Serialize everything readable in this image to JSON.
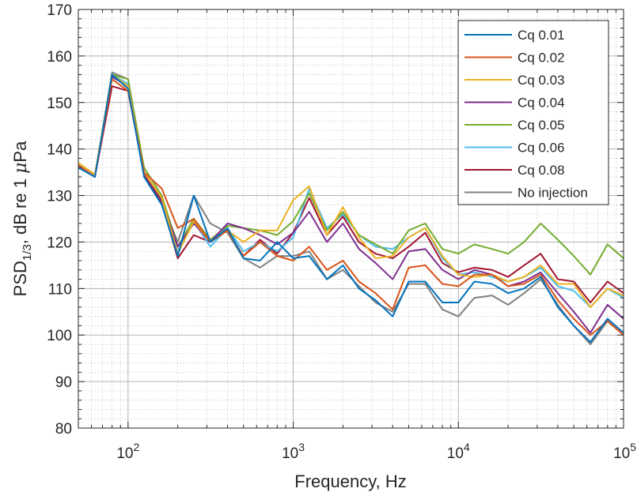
{
  "chart_data": {
    "type": "line",
    "xlabel": "Frequency, Hz",
    "ylabel": "PSD",
    "ylabel_sub": "1/3",
    "ylabel_rest": ", dB re 1 ",
    "ylabel_mu": "μ",
    "ylabel_unit": "Pa",
    "xscale": "log",
    "xlim": [
      50,
      100000
    ],
    "ylim": [
      80,
      170
    ],
    "grid": true,
    "minor_grid": true,
    "legend_position": "top-right",
    "yticks": [
      "80",
      "90",
      "100",
      "110",
      "120",
      "130",
      "140",
      "150",
      "160",
      "170"
    ],
    "xticks": [
      {
        "base": "10",
        "exp": "2"
      },
      {
        "base": "10",
        "exp": "3"
      },
      {
        "base": "10",
        "exp": "4"
      },
      {
        "base": "10",
        "exp": "5"
      }
    ],
    "x": [
      50,
      63,
      80,
      100,
      125,
      160,
      200,
      250,
      315,
      400,
      500,
      630,
      800,
      1000,
      1250,
      1600,
      2000,
      2500,
      3150,
      4000,
      5000,
      6300,
      8000,
      10000,
      12500,
      16000,
      20000,
      25000,
      31500,
      40000,
      50000,
      63000,
      80000,
      100000
    ],
    "series": [
      {
        "name": "Cq 0.01",
        "color": "#0072BD",
        "values": [
          136,
          134,
          156,
          153,
          134,
          128,
          117,
          130,
          120,
          123,
          116.5,
          116,
          120,
          116.5,
          117,
          112,
          115,
          110,
          107.5,
          104,
          111.5,
          111.5,
          107,
          107,
          111.5,
          111,
          109,
          110,
          112.5,
          106,
          102,
          98.5,
          103.5,
          100.5
        ]
      },
      {
        "name": "Cq 0.02",
        "color": "#D95319",
        "values": [
          136.5,
          134,
          155,
          152.5,
          135,
          131.5,
          123,
          125,
          120,
          122.5,
          117,
          120,
          117,
          116,
          119,
          114,
          116,
          111.5,
          109,
          105.5,
          114.5,
          115,
          111,
          110.5,
          113,
          113,
          110.5,
          111,
          113,
          107.5,
          103.5,
          100,
          103,
          100
        ]
      },
      {
        "name": "Cq 0.03",
        "color": "#EDB120",
        "values": [
          137,
          134.5,
          156,
          153.5,
          135,
          129.5,
          117.5,
          124.5,
          120,
          122.5,
          120,
          122.5,
          122.5,
          129,
          132,
          121.5,
          127.5,
          121,
          116.5,
          117,
          121,
          123,
          117,
          113,
          112.5,
          113,
          111.5,
          112.5,
          115,
          111,
          111,
          106,
          110,
          108.5
        ]
      },
      {
        "name": "Cq 0.04",
        "color": "#7E2F8E",
        "values": [
          136.5,
          134,
          155.5,
          153.5,
          135,
          129,
          119,
          124,
          120,
          124,
          123,
          121.5,
          119.5,
          122,
          126.5,
          120,
          124,
          118.5,
          115.5,
          112,
          118,
          118.5,
          114,
          112,
          114,
          113,
          110.5,
          111.5,
          113.5,
          109,
          105,
          100.5,
          106.5,
          103.5
        ]
      },
      {
        "name": "Cq 0.05",
        "color": "#77AC30",
        "values": [
          137,
          134.5,
          156,
          155,
          136,
          130,
          119,
          125,
          120.5,
          123.5,
          123,
          122.5,
          121.5,
          124.5,
          130.5,
          122.5,
          126.5,
          121.5,
          119.5,
          117.5,
          122.5,
          124,
          118.5,
          117.5,
          119.5,
          118.5,
          117.5,
          120,
          124,
          120.5,
          117,
          113,
          119.5,
          116.5
        ]
      },
      {
        "name": "Cq 0.06",
        "color": "#4DBEEE",
        "values": [
          136.5,
          134,
          156,
          154,
          135,
          129,
          118,
          124.5,
          119,
          123,
          118,
          120,
          118,
          121,
          131.5,
          123,
          126,
          121.5,
          119,
          118.5,
          121,
          123,
          116.5,
          113,
          113.5,
          112.5,
          111.5,
          112.5,
          114.5,
          110.5,
          109.5,
          106,
          110,
          108
        ]
      },
      {
        "name": "Cq 0.08",
        "color": "#A2142F",
        "values": [
          136.5,
          134,
          153.5,
          152.5,
          134.5,
          128.5,
          116.5,
          121.5,
          120,
          122.5,
          117,
          120.5,
          117.5,
          122,
          129.5,
          121.5,
          125.5,
          120,
          117.5,
          116.5,
          119,
          122,
          115.5,
          113.5,
          114.5,
          114,
          112.5,
          115,
          117.5,
          112,
          111.5,
          107,
          111.5,
          109
        ]
      },
      {
        "name": "No injection",
        "color": "#808080",
        "values": [
          136.5,
          134,
          156.5,
          155,
          134.5,
          128.5,
          120,
          130,
          124,
          122,
          116.5,
          114.5,
          117,
          117,
          118,
          112,
          114,
          110.5,
          107,
          105,
          111,
          111,
          105.5,
          104,
          108,
          108.5,
          106.5,
          109,
          112,
          106.5,
          102,
          98,
          103,
          100
        ]
      }
    ]
  }
}
